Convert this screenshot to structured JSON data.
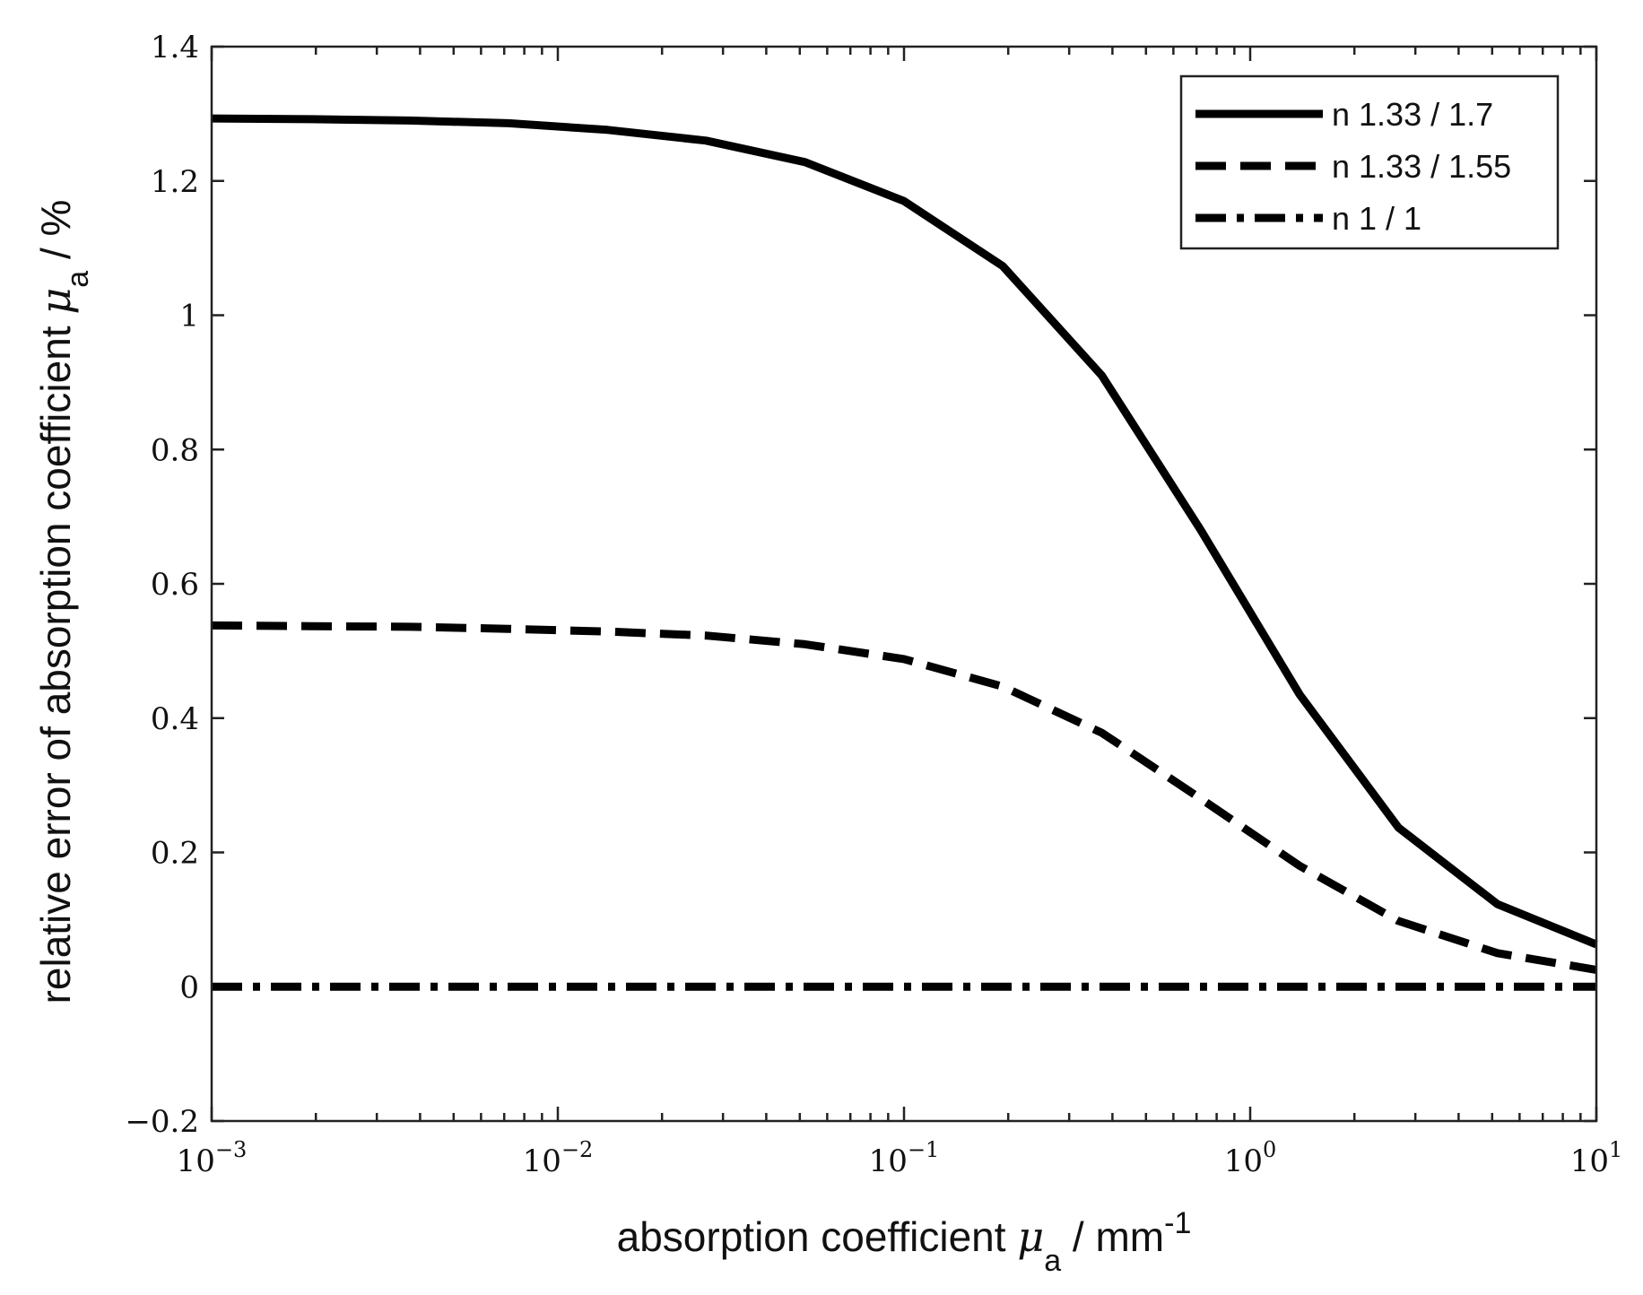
{
  "chart_data": {
    "type": "line",
    "x_scale": "log",
    "xlim": [
      0.001,
      10
    ],
    "ylim": [
      -0.2,
      1.4
    ],
    "x_ticks": [
      {
        "base": "10",
        "exp": "−3"
      },
      {
        "base": "10",
        "exp": "−2"
      },
      {
        "base": "10",
        "exp": "−1"
      },
      {
        "base": "10",
        "exp": "0"
      },
      {
        "base": "10",
        "exp": "1"
      }
    ],
    "y_ticks": [
      "−0.2",
      "0",
      "0.2",
      "0.4",
      "0.6",
      "0.8",
      "1",
      "1.2",
      "1.4"
    ],
    "xlabel": {
      "prefix": "absorption coefficient ",
      "symbol": "μ",
      "sub": "a",
      "suffix": " / mm",
      "sup": "-1"
    },
    "ylabel": {
      "prefix": "relative error of absorption coefficient ",
      "symbol": "μ",
      "sub": "a",
      "suffix": "  / %"
    },
    "legend_position": "top-right",
    "x": [
      0.001,
      0.00193,
      0.00373,
      0.0072,
      0.0139,
      0.0268,
      0.0518,
      0.1,
      0.193,
      0.373,
      0.72,
      1.39,
      2.68,
      5.18,
      10
    ],
    "series": [
      {
        "name": "n 1.33 / 1.7",
        "style": "solid",
        "values": [
          1.293,
          1.292,
          1.29,
          1.286,
          1.276,
          1.26,
          1.228,
          1.17,
          1.073,
          0.91,
          0.68,
          0.435,
          0.237,
          0.123,
          0.063
        ]
      },
      {
        "name": "n 1.33 / 1.55",
        "style": "dashed",
        "values": [
          0.538,
          0.537,
          0.536,
          0.533,
          0.529,
          0.523,
          0.51,
          0.488,
          0.447,
          0.378,
          0.28,
          0.18,
          0.098,
          0.05,
          0.025
        ]
      },
      {
        "name": "n 1 /  1",
        "style": "dashdot",
        "values": [
          0,
          0,
          0,
          0,
          0,
          0,
          0,
          0,
          0,
          0,
          0,
          0,
          0,
          0,
          0
        ]
      }
    ]
  }
}
